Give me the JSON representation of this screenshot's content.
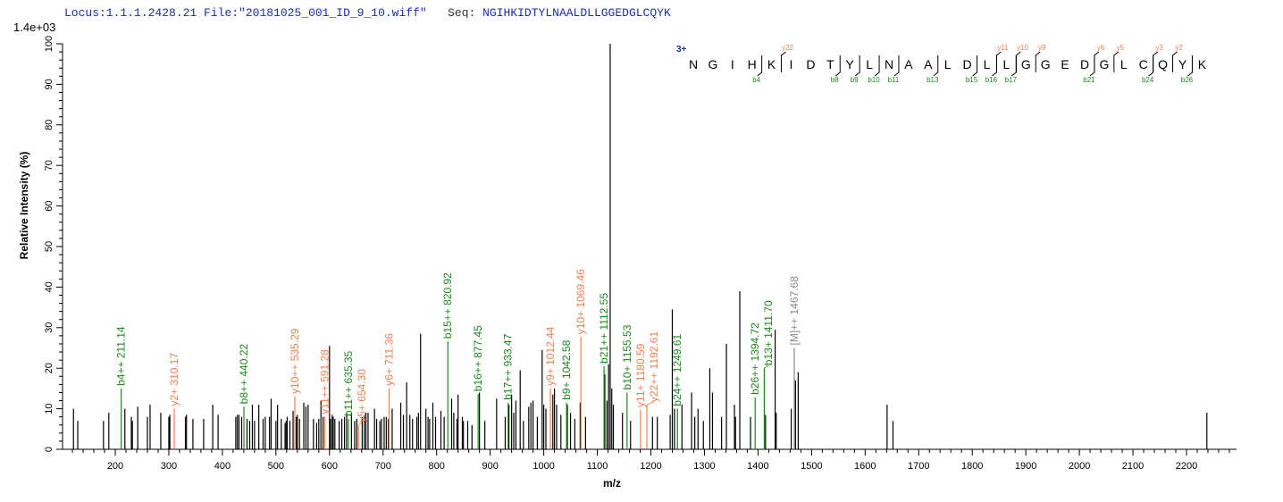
{
  "header": {
    "locus": "Locus:1.1.1.2428.21",
    "file": "File:\"20181025_001_ID_9_10.wiff\"",
    "seq_label": "Seq:",
    "sequence": "NGIHKIDTYLNAALDLLGGEDGLCQYK"
  },
  "chart_data": {
    "type": "bar",
    "scale_label": "1.4e+03",
    "xlabel": "m/z",
    "ylabel": "Relative   Intensity (%)",
    "xlim": [
      101,
      2293
    ],
    "ylim": [
      0,
      100
    ],
    "xticks": [
      200,
      300,
      400,
      500,
      600,
      700,
      800,
      900,
      1000,
      1100,
      1200,
      1300,
      1400,
      1500,
      1600,
      1700,
      1800,
      1900,
      2000,
      2100,
      2200
    ],
    "yticks": [
      0,
      10,
      20,
      30,
      40,
      50,
      60,
      70,
      80,
      90,
      100
    ],
    "grid": false,
    "colors": {
      "b_ion": "#1a8a1a",
      "y_ion": "#f07f4f",
      "precursor": "#888888",
      "unassigned": "#000000",
      "sequence_b": "#1a8a1a",
      "sequence_y": "#f07f4f",
      "charge": "#1c2ea8"
    },
    "annotated_peaks": [
      {
        "mz": 211.14,
        "intensity": 15,
        "label": "b4++ 211.14",
        "type": "b"
      },
      {
        "mz": 310.17,
        "intensity": 10,
        "label": "y2+ 310.17",
        "type": "y"
      },
      {
        "mz": 440.22,
        "intensity": 10.5,
        "label": "b8++ 440.22",
        "type": "b"
      },
      {
        "mz": 535.29,
        "intensity": 13,
        "label": "y10++ 535.29",
        "type": "y"
      },
      {
        "mz": 591.28,
        "intensity": 8,
        "label": "y11++ 591.28",
        "type": "y"
      },
      {
        "mz": 635.35,
        "intensity": 7.5,
        "label": "b11++ 635.35",
        "type": "b"
      },
      {
        "mz": 654.3,
        "intensity": 6,
        "label": "y5+ 654.30",
        "type": "y"
      },
      {
        "mz": 711.36,
        "intensity": 15,
        "label": "y6+ 711.36",
        "type": "y"
      },
      {
        "mz": 820.92,
        "intensity": 26.6,
        "label": "b15++ 820.92",
        "type": "b"
      },
      {
        "mz": 877.45,
        "intensity": 13.6,
        "label": "b16++ 877.45",
        "type": "b"
      },
      {
        "mz": 933.47,
        "intensity": 11.5,
        "label": "b17++ 933.47",
        "type": "b"
      },
      {
        "mz": 1012.44,
        "intensity": 15,
        "label": "y9+ 1012.44",
        "type": "y"
      },
      {
        "mz": 1042.58,
        "intensity": 11.5,
        "label": "b9+ 1042.58",
        "type": "b"
      },
      {
        "mz": 1069.46,
        "intensity": 27.7,
        "label": "y10+ 1069.46",
        "type": "y"
      },
      {
        "mz": 1112.55,
        "intensity": 20.5,
        "label": "b21++ 1112.55",
        "type": "b"
      },
      {
        "mz": 1155.53,
        "intensity": 14,
        "label": "b10+ 1155.53",
        "type": "b"
      },
      {
        "mz": 1180.59,
        "intensity": 9.7,
        "label": "y11+ 1180.59",
        "type": "y"
      },
      {
        "mz": 1192.61,
        "intensity": 11,
        "label": "y22++ 1192.61",
        "type": "y"
      },
      {
        "mz": 1249.61,
        "intensity": 10,
        "label": "b24++ 1249.61",
        "type": "b"
      },
      {
        "mz": 1394.72,
        "intensity": 12.8,
        "label": "b26++ 1394.72",
        "type": "b"
      },
      {
        "mz": 1411.7,
        "intensity": 20,
        "label": "b13+ 1411.70",
        "type": "b"
      },
      {
        "mz": 1467.68,
        "intensity": 25,
        "label": "[M]++ 1467.68",
        "type": "precursor"
      }
    ],
    "peaks": [
      [
        122,
        10
      ],
      [
        130,
        7
      ],
      [
        178,
        7
      ],
      [
        188,
        9
      ],
      [
        218,
        10
      ],
      [
        230,
        8
      ],
      [
        232,
        7
      ],
      [
        242,
        10.5
      ],
      [
        260,
        8
      ],
      [
        265,
        11
      ],
      [
        285,
        9
      ],
      [
        300,
        8
      ],
      [
        302,
        8.5
      ],
      [
        331,
        8
      ],
      [
        333,
        8.5
      ],
      [
        345,
        7.5
      ],
      [
        365,
        7.5
      ],
      [
        382,
        11
      ],
      [
        392,
        8.5
      ],
      [
        425,
        8
      ],
      [
        428,
        8.5
      ],
      [
        431,
        8.5
      ],
      [
        436,
        8
      ],
      [
        446,
        7.5
      ],
      [
        451,
        7
      ],
      [
        456,
        11
      ],
      [
        460,
        7
      ],
      [
        468,
        11
      ],
      [
        476,
        7.5
      ],
      [
        480,
        8
      ],
      [
        488,
        8
      ],
      [
        491,
        12.5
      ],
      [
        500,
        7
      ],
      [
        503,
        11
      ],
      [
        510,
        7.5
      ],
      [
        517,
        6.5
      ],
      [
        519,
        7
      ],
      [
        521,
        8
      ],
      [
        526,
        7
      ],
      [
        532,
        9.5
      ],
      [
        538,
        8
      ],
      [
        540,
        8.5
      ],
      [
        544,
        7.5
      ],
      [
        552,
        11.5
      ],
      [
        556,
        10.5
      ],
      [
        560,
        11
      ],
      [
        570,
        7.5
      ],
      [
        576,
        6.5
      ],
      [
        580,
        7.5
      ],
      [
        584,
        12
      ],
      [
        588,
        8
      ],
      [
        600,
        25.5
      ],
      [
        602,
        7.5
      ],
      [
        605,
        8.5
      ],
      [
        607,
        8
      ],
      [
        610,
        7.5
      ],
      [
        618,
        7
      ],
      [
        623,
        7.5
      ],
      [
        628,
        8
      ],
      [
        632,
        9
      ],
      [
        641,
        9
      ],
      [
        647,
        7
      ],
      [
        651,
        7.5
      ],
      [
        661,
        8
      ],
      [
        665,
        8.5
      ],
      [
        668,
        9
      ],
      [
        672,
        9
      ],
      [
        684,
        10
      ],
      [
        688,
        7.5
      ],
      [
        694,
        7
      ],
      [
        697,
        7.5
      ],
      [
        702,
        8
      ],
      [
        706,
        8
      ],
      [
        710,
        7.5
      ],
      [
        717,
        10
      ],
      [
        733,
        11.5
      ],
      [
        738,
        8.5
      ],
      [
        744,
        16.5
      ],
      [
        750,
        8.5
      ],
      [
        755,
        7.5
      ],
      [
        763,
        8
      ],
      [
        766,
        9
      ],
      [
        770,
        28.5
      ],
      [
        780,
        10
      ],
      [
        784,
        8
      ],
      [
        787,
        7.5
      ],
      [
        793,
        11.5
      ],
      [
        798,
        8
      ],
      [
        808,
        9.5
      ],
      [
        814,
        8
      ],
      [
        828,
        12.5
      ],
      [
        832,
        9
      ],
      [
        838,
        7.5
      ],
      [
        840,
        13.5
      ],
      [
        848,
        8
      ],
      [
        850,
        7
      ],
      [
        858,
        7
      ],
      [
        866,
        6
      ],
      [
        880,
        14
      ],
      [
        890,
        7
      ],
      [
        912,
        12.5
      ],
      [
        928,
        8
      ],
      [
        935,
        11
      ],
      [
        940,
        13.5
      ],
      [
        944,
        9
      ],
      [
        948,
        12
      ],
      [
        956,
        19.5
      ],
      [
        962,
        7
      ],
      [
        972,
        10.5
      ],
      [
        976,
        11.5
      ],
      [
        980,
        12
      ],
      [
        988,
        8
      ],
      [
        997,
        24.5
      ],
      [
        1000,
        11
      ],
      [
        1004,
        10
      ],
      [
        1017,
        13.5
      ],
      [
        1020,
        15
      ],
      [
        1024,
        11
      ],
      [
        1032,
        8.5
      ],
      [
        1044,
        11
      ],
      [
        1050,
        9
      ],
      [
        1058,
        7.5
      ],
      [
        1068,
        11.5
      ],
      [
        1078,
        8
      ],
      [
        1114,
        18.5
      ],
      [
        1118,
        12
      ],
      [
        1121,
        21
      ],
      [
        1124,
        100
      ],
      [
        1127,
        15
      ],
      [
        1130,
        11
      ],
      [
        1147,
        9
      ],
      [
        1162,
        7
      ],
      [
        1203,
        8
      ],
      [
        1212,
        8
      ],
      [
        1236,
        8.5
      ],
      [
        1240,
        34.5
      ],
      [
        1244,
        10
      ],
      [
        1258,
        11
      ],
      [
        1276,
        14
      ],
      [
        1282,
        8
      ],
      [
        1288,
        10
      ],
      [
        1298,
        7
      ],
      [
        1310,
        20
      ],
      [
        1315,
        14
      ],
      [
        1332,
        8
      ],
      [
        1341,
        26
      ],
      [
        1356,
        11
      ],
      [
        1358,
        8
      ],
      [
        1366,
        39
      ],
      [
        1386,
        8
      ],
      [
        1414,
        8.5
      ],
      [
        1432,
        29.5
      ],
      [
        1434,
        9
      ],
      [
        1462,
        10
      ],
      [
        1470,
        17
      ],
      [
        1475,
        19
      ],
      [
        1641,
        11
      ],
      [
        1652,
        7
      ],
      [
        2238,
        9
      ]
    ],
    "sequence_annotation": {
      "charge": "3+",
      "residues": [
        "N",
        "G",
        "I",
        "H",
        "K",
        "I",
        "D",
        "T",
        "Y",
        "L",
        "N",
        "A",
        "A",
        "L",
        "D",
        "L",
        "L",
        "G",
        "G",
        "E",
        "D",
        "G",
        "L",
        "C",
        "Q",
        "Y",
        "K"
      ],
      "b_ions": [
        {
          "after": 4,
          "label": "b4"
        },
        {
          "after": 8,
          "label": "b8"
        },
        {
          "after": 9,
          "label": "b9"
        },
        {
          "after": 10,
          "label": "b10"
        },
        {
          "after": 11,
          "label": "b11"
        },
        {
          "after": 13,
          "label": "b13"
        },
        {
          "after": 15,
          "label": "b15"
        },
        {
          "after": 16,
          "label": "b16"
        },
        {
          "after": 17,
          "label": "b17"
        },
        {
          "after": 21,
          "label": "b21"
        },
        {
          "after": 24,
          "label": "b24"
        },
        {
          "after": 26,
          "label": "b26"
        }
      ],
      "y_ions": [
        {
          "after": 5,
          "label": "y22"
        },
        {
          "after": 16,
          "label": "y11"
        },
        {
          "after": 17,
          "label": "y10"
        },
        {
          "after": 18,
          "label": "y9"
        },
        {
          "after": 21,
          "label": "y6"
        },
        {
          "after": 22,
          "label": "y5"
        },
        {
          "after": 24,
          "label": "y3"
        },
        {
          "after": 25,
          "label": "y2"
        }
      ]
    }
  }
}
